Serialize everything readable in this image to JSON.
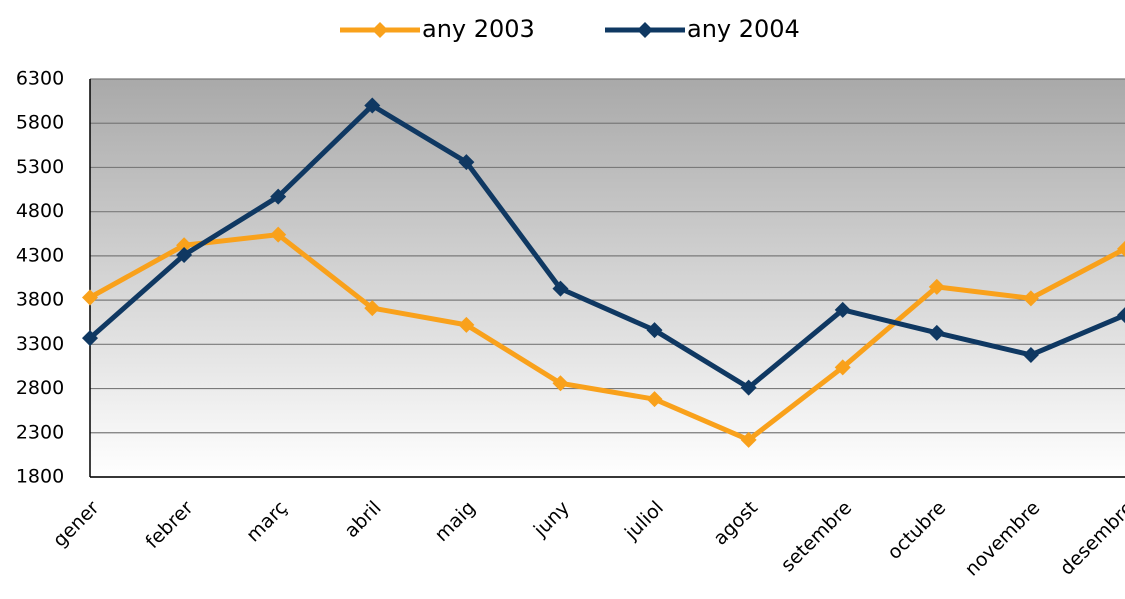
{
  "chart_data": {
    "type": "line",
    "categories": [
      "gener",
      "febrer",
      "març",
      "abril",
      "maig",
      "juny",
      "juliol",
      "agost",
      "setembre",
      "octubre",
      "novembre",
      "desembre"
    ],
    "series": [
      {
        "name": "any 2003",
        "color": "#f9a11b",
        "values": [
          3830,
          4420,
          4540,
          3710,
          3520,
          2860,
          2680,
          2220,
          3040,
          3950,
          3820,
          4380
        ]
      },
      {
        "name": "any 2004",
        "color": "#0f3862",
        "values": [
          3370,
          4310,
          4970,
          6000,
          5360,
          3930,
          3460,
          2810,
          3690,
          3430,
          3180,
          3630
        ]
      }
    ],
    "ylim": [
      1800,
      6300
    ],
    "yticks": [
      1800,
      2300,
      2800,
      3300,
      3800,
      4300,
      4800,
      5300,
      5800,
      6300
    ],
    "grid": true,
    "legend": "top"
  }
}
